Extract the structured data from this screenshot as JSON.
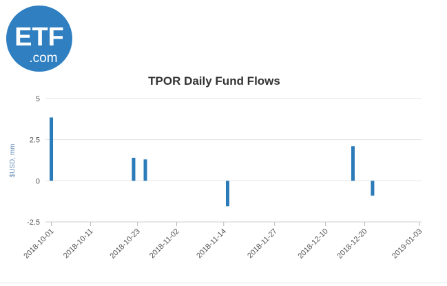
{
  "logo": {
    "big_text": "ETF",
    "small_text": ".com",
    "color": "#2f7fc1"
  },
  "chart_data": {
    "type": "bar",
    "title": "TPOR Daily Fund Flows",
    "xlabel": "",
    "ylabel": "$USD, mm",
    "x_axis": {
      "type": "date",
      "range": [
        "2018-09-30",
        "2019-01-04"
      ],
      "tick_labels": [
        "2018-10-01",
        "2018-10-11",
        "2018-10-23",
        "2018-11-02",
        "2018-11-14",
        "2018-11-27",
        "2018-12-10",
        "2018-12-20",
        "2019-01-03"
      ]
    },
    "y_axis": {
      "range": [
        -2.5,
        5
      ],
      "tick_labels": [
        "5",
        "2.5",
        "0",
        "-2.5"
      ],
      "tick_values": [
        5,
        2.5,
        0,
        -2.5
      ]
    },
    "grid": true,
    "legend": "none",
    "bar_color": "#2b7bb9",
    "series": [
      {
        "points": [
          {
            "x": "2018-10-01",
            "y": 3.85
          },
          {
            "x": "2018-10-22",
            "y": 1.4
          },
          {
            "x": "2018-10-25",
            "y": 1.3
          },
          {
            "x": "2018-11-15",
            "y": -1.55
          },
          {
            "x": "2018-12-17",
            "y": 2.1
          },
          {
            "x": "2018-12-22",
            "y": -0.9
          }
        ]
      }
    ]
  }
}
